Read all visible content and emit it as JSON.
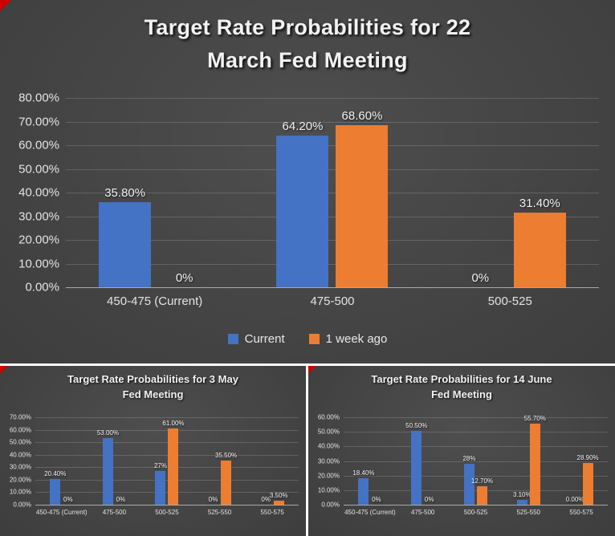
{
  "colors": {
    "series_blue": "#4472C4",
    "series_orange": "#ED7D31",
    "divider": "#FFFFFF",
    "corner_marker": "#CC0000",
    "axis_text": "#E3E3E3",
    "title_text": "#F2F2F2"
  },
  "chart_data": [
    {
      "type": "bar",
      "title": "Target Rate Probabilities for 22 March Fed Meeting",
      "title_lines": [
        "Target Rate Probabilities for 22",
        "March Fed Meeting"
      ],
      "categories": [
        "450-475 (Current)",
        "475-500",
        "500-525"
      ],
      "series": [
        {
          "name": "Current",
          "color": "#4472C4",
          "values": [
            35.8,
            64.2,
            0
          ],
          "labels": [
            "35.80%",
            "64.20%",
            "0%"
          ]
        },
        {
          "name": "1 week ago",
          "color": "#ED7D31",
          "values": [
            0,
            68.6,
            31.4
          ],
          "labels": [
            "0%",
            "68.60%",
            "31.40%"
          ]
        }
      ],
      "ylim": [
        0,
        80
      ],
      "yticks": [
        "0.00%",
        "10.00%",
        "20.00%",
        "30.00%",
        "40.00%",
        "50.00%",
        "60.00%",
        "70.00%",
        "80.00%"
      ],
      "grid": true,
      "show_legend": true,
      "legend_position": "bottom"
    },
    {
      "type": "bar",
      "title": "Target Rate Probabilities for 3 May Fed Meeting",
      "title_lines": [
        "Target Rate Probabilities for 3 May",
        "Fed Meeting"
      ],
      "categories": [
        "450-475 (Current)",
        "475-500",
        "500-525",
        "525-550",
        "550-575"
      ],
      "series": [
        {
          "name": "Current",
          "color": "#4472C4",
          "values": [
            20.4,
            53,
            27,
            0,
            0
          ],
          "labels": [
            "20.40%",
            "53.00%",
            "27%",
            "0%",
            "0%"
          ]
        },
        {
          "name": "1 week ago",
          "color": "#ED7D31",
          "values": [
            0,
            0,
            61,
            35.5,
            3.5
          ],
          "labels": [
            "0%",
            "0%",
            "61.00%",
            "35.50%",
            "3.50%"
          ]
        }
      ],
      "ylim": [
        0,
        70
      ],
      "yticks": [
        "0.00%",
        "10.00%",
        "20.00%",
        "30.00%",
        "40.00%",
        "50.00%",
        "60.00%",
        "70.00%"
      ],
      "grid": true,
      "show_legend": false
    },
    {
      "type": "bar",
      "title": "Target Rate Probabilities for 14 June Fed Meeting",
      "title_lines": [
        "Target Rate Probabilities for 14 June",
        "Fed Meeting"
      ],
      "categories": [
        "450-475 (Current)",
        "475-500",
        "500-525",
        "525-550",
        "550-575"
      ],
      "series": [
        {
          "name": "Current",
          "color": "#4472C4",
          "values": [
            18.4,
            50.5,
            28,
            3.1,
            0
          ],
          "labels": [
            "18.40%",
            "50.50%",
            "28%",
            "3.10%",
            "0.00%"
          ]
        },
        {
          "name": "1 week ago",
          "color": "#ED7D31",
          "values": [
            0,
            0,
            12.7,
            55.7,
            28.9
          ],
          "labels": [
            "0%",
            "0%",
            "12.70%",
            "55.70%",
            "28.90%"
          ]
        }
      ],
      "ylim": [
        0,
        60
      ],
      "yticks": [
        "0.00%",
        "10.00%",
        "20.00%",
        "30.00%",
        "40.00%",
        "50.00%",
        "60.00%"
      ],
      "grid": true,
      "show_legend": false
    }
  ]
}
